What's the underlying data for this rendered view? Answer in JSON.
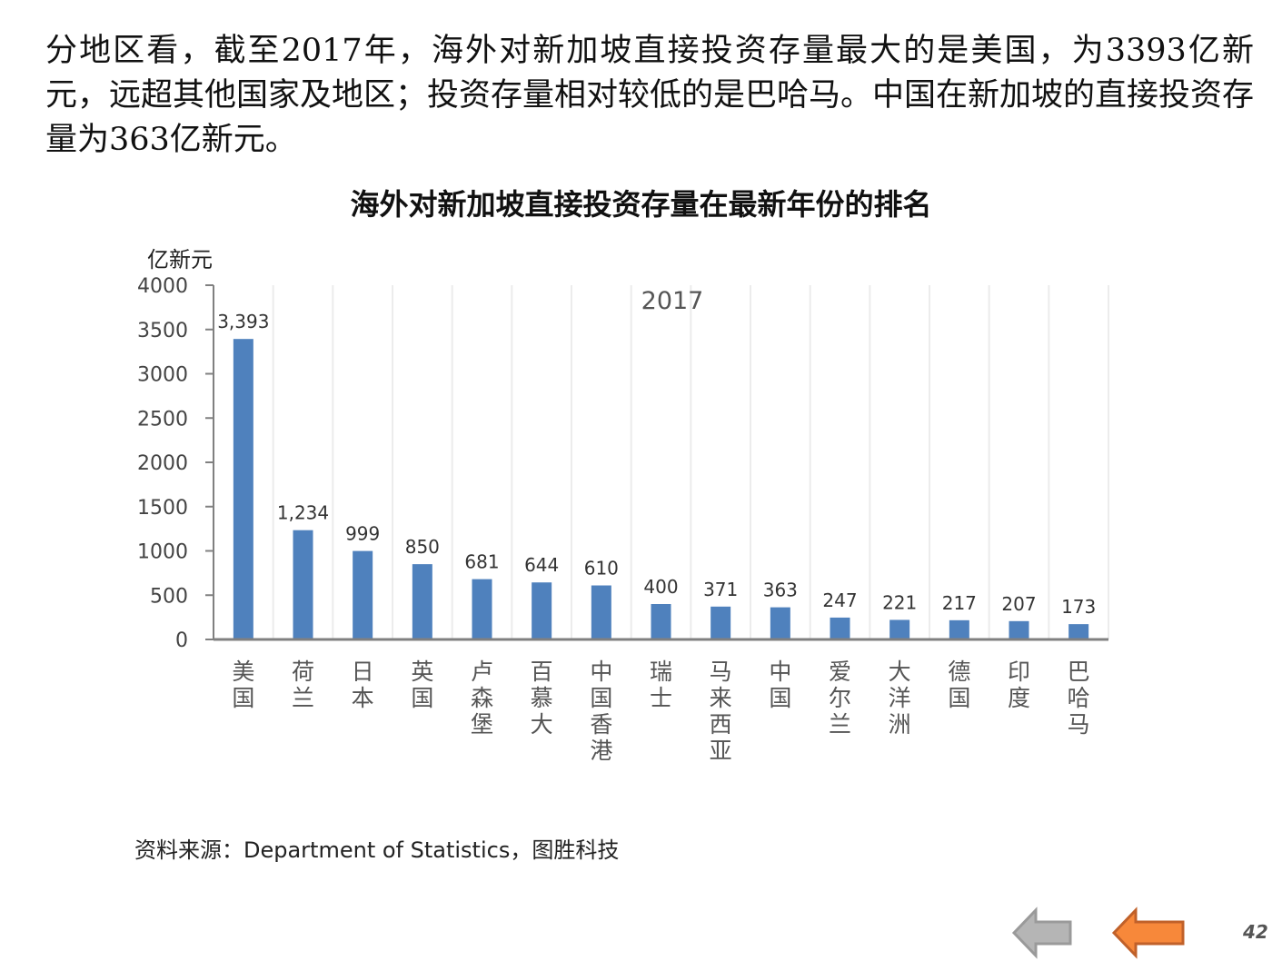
{
  "intro_text": "分地区看，截至2017年，海外对新加坡直接投资存量最大的是美国，为3393亿新元，远超其他国家及地区；投资存量相对较低的是巴哈马。中国在新加坡的直接投资存量为363亿新元。",
  "source": "资料来源：Department  of Statistics，图胜科技",
  "page_number": "42",
  "nav": {
    "prev_icon": "left-arrow-gray",
    "next_icon": "left-arrow-orange"
  },
  "colors": {
    "bar": "#4f81bd",
    "arrow_orange": "#f7883a",
    "arrow_gray": "#b5b5b5"
  },
  "chart_data": {
    "type": "bar",
    "title": "海外对新加坡直接投资存量在最新年份的排名",
    "ylabel": "亿新元",
    "annotation": "2017",
    "categories": [
      "美国",
      "荷兰",
      "日本",
      "英国",
      "卢森堡",
      "百慕大",
      "中国香港",
      "瑞士",
      "马来西亚",
      "中国",
      "爱尔兰",
      "大洋洲",
      "德国",
      "印度",
      "巴哈马"
    ],
    "values": [
      3393,
      1234,
      999,
      850,
      681,
      644,
      610,
      400,
      371,
      363,
      247,
      221,
      217,
      207,
      173
    ],
    "data_labels": [
      "3,393",
      "1,234",
      "999",
      "850",
      "681",
      "644",
      "610",
      "400",
      "371",
      "363",
      "247",
      "221",
      "217",
      "207",
      "173"
    ],
    "ylim": [
      0,
      4000
    ],
    "yticks": [
      0,
      500,
      1000,
      1500,
      2000,
      2500,
      3000,
      3500,
      4000
    ],
    "grid": "vertical"
  }
}
